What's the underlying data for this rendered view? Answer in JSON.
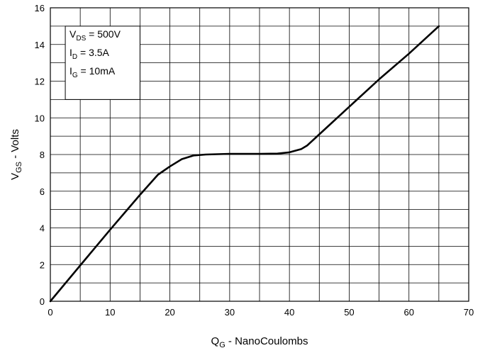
{
  "chart_data": {
    "type": "line",
    "title": "",
    "xlabel": {
      "main": "Q",
      "sub": "G",
      "rest": " - NanoCoulombs"
    },
    "ylabel": {
      "main": "V",
      "sub": "GS",
      "rest": " - Volts"
    },
    "xlim": [
      0,
      70
    ],
    "ylim": [
      0,
      16
    ],
    "x_ticks": [
      0,
      10,
      20,
      30,
      40,
      50,
      60,
      70
    ],
    "y_ticks": [
      0,
      2,
      4,
      6,
      8,
      10,
      12,
      14,
      16
    ],
    "x_ticks_text": [
      "0",
      "10",
      "20",
      "30",
      "40",
      "50",
      "60",
      "70"
    ],
    "y_ticks_text": [
      "0",
      "2",
      "4",
      "6",
      "8",
      "10",
      "12",
      "14",
      "16"
    ],
    "x_minor_step": 5,
    "y_minor_step": 1,
    "grid": true,
    "legend_position": "top-left",
    "annotations": [
      {
        "main": "V",
        "sub": "DS",
        "rest": " = 500V"
      },
      {
        "main": "I",
        "sub": "D",
        "rest": " = 3.5A"
      },
      {
        "main": "I",
        "sub": "G",
        "rest": " = 10mA"
      }
    ],
    "series": [
      {
        "x": [
          0,
          5,
          10,
          15,
          18,
          20,
          22,
          24,
          26,
          28,
          30,
          35,
          38,
          40,
          42,
          43,
          45,
          50,
          55,
          60,
          65
        ],
        "y": [
          0,
          1.95,
          3.9,
          5.8,
          6.9,
          7.35,
          7.75,
          7.95,
          8.0,
          8.02,
          8.04,
          8.04,
          8.05,
          8.12,
          8.3,
          8.5,
          9.1,
          10.6,
          12.1,
          13.5,
          15.0
        ]
      }
    ]
  }
}
